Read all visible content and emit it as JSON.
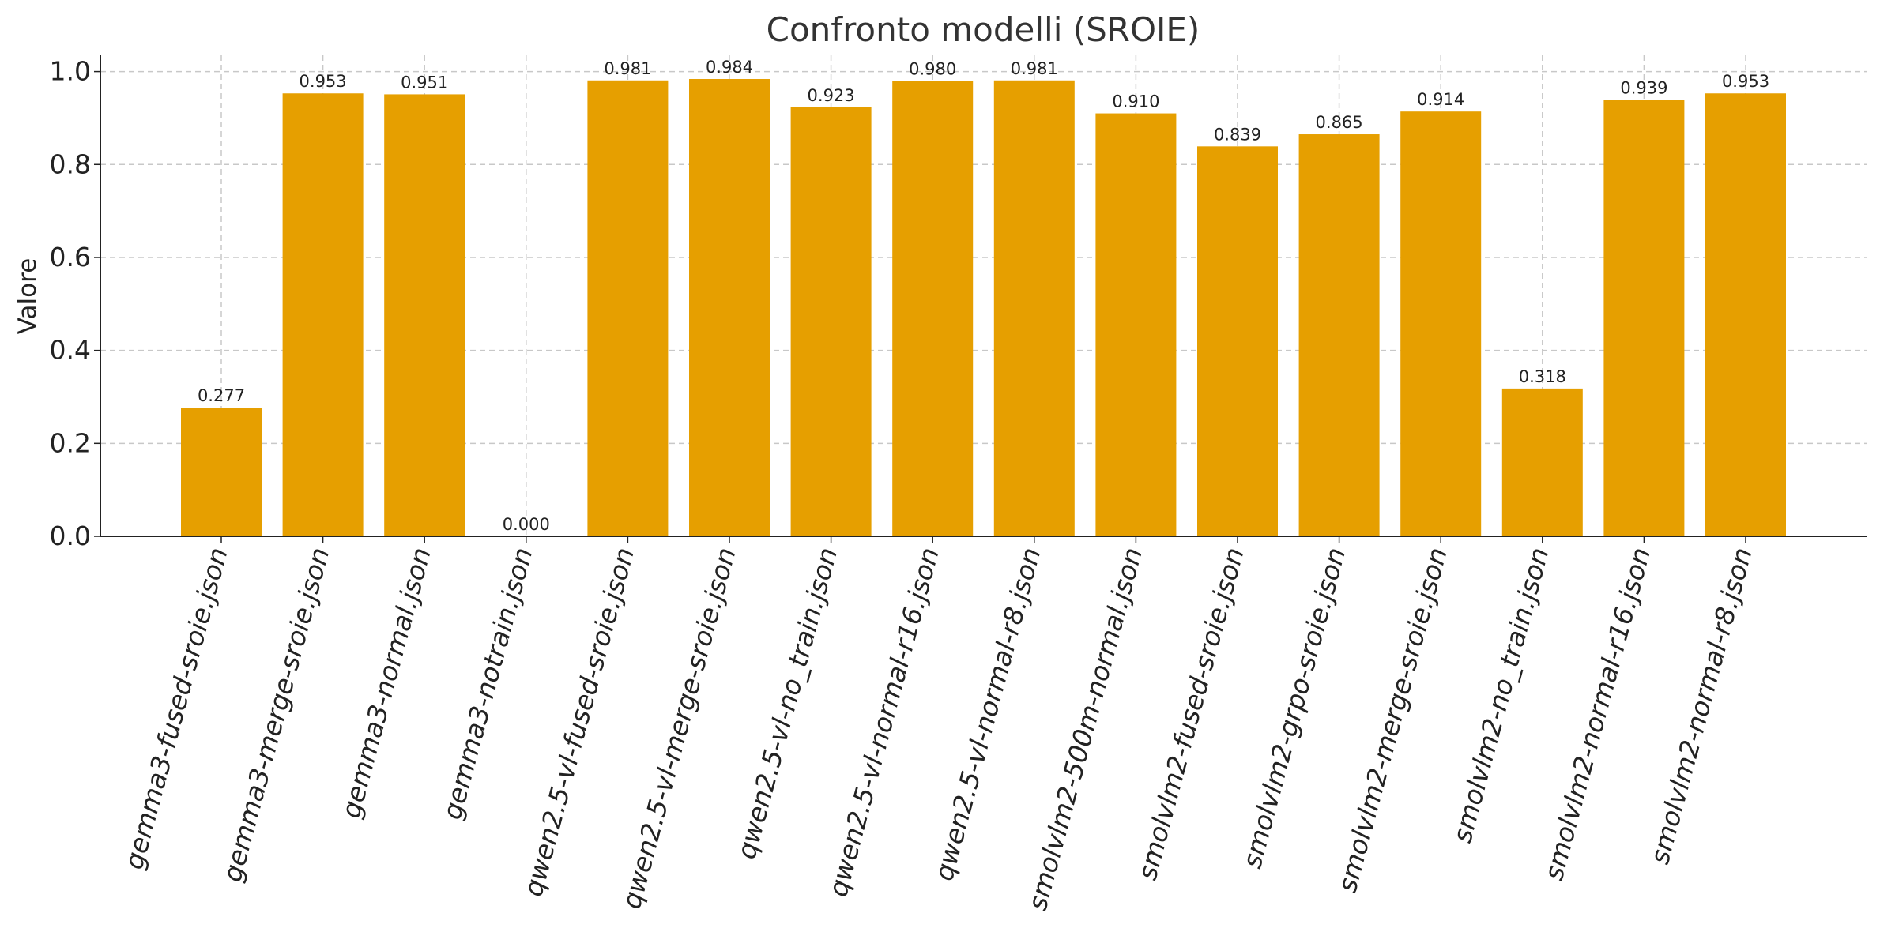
{
  "chart_data": {
    "type": "bar",
    "title": "Confronto modelli (SROIE)",
    "xlabel": "",
    "ylabel": "Valore",
    "ylim": [
      0,
      1.035
    ],
    "yticks": [
      "0.0",
      "0.2",
      "0.4",
      "0.6",
      "0.8",
      "1.0"
    ],
    "ytick_values": [
      0,
      0.2,
      0.4,
      0.6,
      0.8,
      1.0
    ],
    "grid": true,
    "bar_color": "#E69F00",
    "categories": [
      "gemma3-fused-sroie.json",
      "gemma3-merge-sroie.json",
      "gemma3-normal.json",
      "gemma3-notrain.json",
      "qwen2.5-vl-fused-sroie.json",
      "qwen2.5-vl-merge-sroie.json",
      "qwen2.5-vl-no_train.json",
      "qwen2.5-vl-normal-r16.json",
      "qwen2.5-vl-normal-r8.json",
      "smolvlm2-500m-normal.json",
      "smolvlm2-fused-sroie.json",
      "smolvlm2-grpo-sroie.json",
      "smolvlm2-merge-sroie.json",
      "smolvlm2-no_train.json",
      "smolvlm2-normal-r16.json",
      "smolvlm2-normal-r8.json"
    ],
    "values": [
      0.277,
      0.953,
      0.951,
      0.0,
      0.981,
      0.984,
      0.923,
      0.98,
      0.981,
      0.91,
      0.839,
      0.865,
      0.914,
      0.318,
      0.939,
      0.953
    ],
    "value_labels": [
      "0.277",
      "0.953",
      "0.951",
      "0.000",
      "0.981",
      "0.984",
      "0.923",
      "0.980",
      "0.981",
      "0.910",
      "0.839",
      "0.865",
      "0.914",
      "0.318",
      "0.939",
      "0.953"
    ]
  }
}
